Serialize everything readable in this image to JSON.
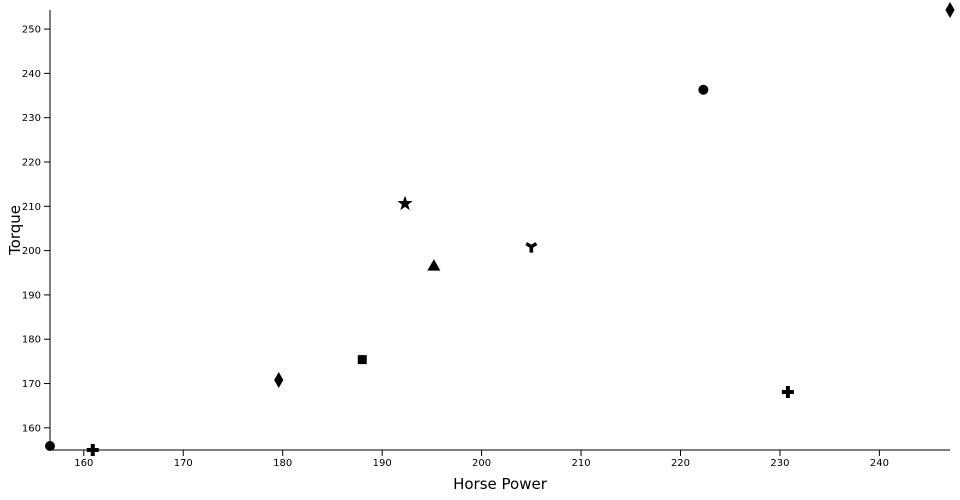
{
  "chart_data": {
    "type": "scatter",
    "x_label": "Horse Power",
    "y_label": "Torque",
    "x": [
      156.6,
      160.9,
      179.6,
      188.0,
      192.3,
      195.2,
      205.0,
      222.3,
      230.8,
      247.1
    ],
    "values": [
      155.9,
      155.0,
      170.8,
      175.4,
      210.6,
      196.6,
      200.9,
      236.3,
      168.1,
      254.3
    ],
    "shapes": [
      "circle",
      "cross",
      "diamond",
      "square",
      "star",
      "triangle",
      "wye",
      "circle",
      "cross",
      "diamond"
    ],
    "color": "#000000",
    "xlim": [
      156.6,
      247.1
    ],
    "ylim": [
      155.0,
      254.3
    ],
    "xticks": [
      160,
      170,
      180,
      190,
      200,
      210,
      220,
      230,
      240
    ],
    "yticks": [
      160,
      170,
      180,
      190,
      200,
      210,
      220,
      230,
      240,
      250
    ]
  }
}
